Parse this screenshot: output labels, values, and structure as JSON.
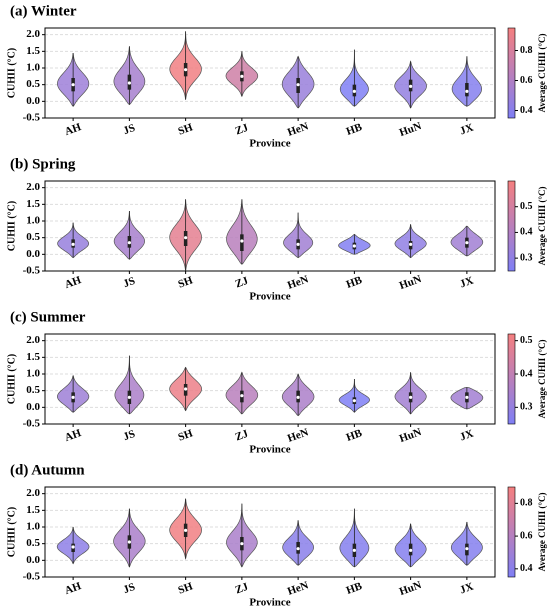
{
  "chart_data": [
    {
      "type": "violin",
      "title": "(a) Winter",
      "x_label": "Province",
      "y_label": "CUHII (°C)",
      "categories": [
        "AH",
        "JS",
        "SH",
        "ZJ",
        "HeN",
        "HB",
        "HuN",
        "JX"
      ],
      "min": [
        -0.15,
        -0.1,
        0.05,
        0.15,
        -0.2,
        -0.15,
        -0.2,
        -0.15
      ],
      "q1": [
        0.3,
        0.35,
        0.75,
        0.6,
        0.25,
        0.15,
        0.3,
        0.15
      ],
      "median": [
        0.5,
        0.55,
        0.95,
        0.75,
        0.5,
        0.3,
        0.45,
        0.3
      ],
      "q3": [
        0.7,
        0.8,
        1.15,
        0.9,
        0.7,
        0.5,
        0.65,
        0.55
      ],
      "max": [
        1.45,
        1.65,
        2.1,
        1.5,
        1.35,
        1.55,
        1.2,
        1.35
      ],
      "mean": [
        0.5,
        0.55,
        0.93,
        0.75,
        0.48,
        0.35,
        0.45,
        0.38
      ],
      "ylim": [
        -0.5,
        2.2
      ],
      "yticks": [
        -0.5,
        {
          "value": 0,
          "label": "0.0"
        },
        0.5,
        {
          "value": 1,
          "label": "1.0"
        },
        1.5,
        {
          "value": 2,
          "label": "2.0"
        }
      ],
      "grid": true,
      "colormap": [
        "#7f7ff5",
        "#f57f7f"
      ],
      "colorbar_label": "Average CUHII (°C)",
      "clim": [
        0.35,
        0.95
      ],
      "cticks": [
        0.4,
        0.6,
        0.8
      ]
    },
    {
      "type": "violin",
      "title": "(b) Spring",
      "x_label": "Province",
      "y_label": "CUHII (°C)",
      "categories": [
        "AH",
        "JS",
        "SH",
        "ZJ",
        "HeN",
        "HB",
        "HuN",
        "JX"
      ],
      "min": [
        -0.1,
        -0.15,
        -0.5,
        -0.3,
        -0.1,
        0.0,
        -0.1,
        -0.05
      ],
      "q1": [
        0.2,
        0.2,
        0.25,
        0.1,
        0.15,
        0.15,
        0.15,
        0.2
      ],
      "median": [
        0.3,
        0.35,
        0.5,
        0.4,
        0.3,
        0.25,
        0.3,
        0.35
      ],
      "q3": [
        0.45,
        0.55,
        0.7,
        0.6,
        0.45,
        0.35,
        0.4,
        0.5
      ],
      "max": [
        0.95,
        1.3,
        1.65,
        1.65,
        1.25,
        0.6,
        0.9,
        0.85
      ],
      "mean": [
        0.32,
        0.37,
        0.55,
        0.42,
        0.35,
        0.26,
        0.3,
        0.35
      ],
      "ylim": [
        -0.5,
        2.2
      ],
      "yticks": [
        -0.5,
        {
          "value": 0,
          "label": "0.0"
        },
        0.5,
        {
          "value": 1,
          "label": "1.0"
        },
        1.5,
        {
          "value": 2,
          "label": "2.0"
        }
      ],
      "grid": true,
      "colormap": [
        "#7f7ff5",
        "#f57f7f"
      ],
      "colorbar_label": "Average CUHII (°C)",
      "clim": [
        0.25,
        0.6
      ],
      "cticks": [
        0.3,
        0.4,
        0.5
      ]
    },
    {
      "type": "violin",
      "title": "(c) Summer",
      "x_label": "Province",
      "y_label": "CUHII (°C)",
      "categories": [
        "AH",
        "JS",
        "SH",
        "ZJ",
        "HeN",
        "HB",
        "HuN",
        "JX"
      ],
      "min": [
        -0.15,
        -0.2,
        -0.1,
        -0.2,
        -0.25,
        -0.15,
        -0.2,
        -0.05
      ],
      "q1": [
        0.15,
        0.1,
        0.35,
        0.15,
        0.15,
        0.1,
        0.15,
        0.15
      ],
      "median": [
        0.3,
        0.3,
        0.55,
        0.35,
        0.3,
        0.2,
        0.3,
        0.3
      ],
      "q3": [
        0.45,
        0.5,
        0.7,
        0.5,
        0.5,
        0.3,
        0.45,
        0.45
      ],
      "max": [
        0.95,
        1.55,
        1.2,
        1.05,
        1.0,
        0.85,
        1.05,
        0.6
      ],
      "mean": [
        0.32,
        0.35,
        0.5,
        0.38,
        0.35,
        0.25,
        0.33,
        0.33
      ],
      "ylim": [
        -0.5,
        2.2
      ],
      "yticks": [
        -0.5,
        {
          "value": 0,
          "label": "0.0"
        },
        0.5,
        {
          "value": 1,
          "label": "1.0"
        },
        1.5,
        {
          "value": 2,
          "label": "2.0"
        }
      ],
      "grid": true,
      "colormap": [
        "#7f7ff5",
        "#f57f7f"
      ],
      "colorbar_label": "Average CUHII (°C)",
      "clim": [
        0.25,
        0.52
      ],
      "cticks": [
        0.3,
        0.4,
        0.5
      ]
    },
    {
      "type": "violin",
      "title": "(d) Autumn",
      "x_label": "Province",
      "y_label": "CUHII (°C)",
      "categories": [
        "AH",
        "JS",
        "SH",
        "ZJ",
        "HeN",
        "HB",
        "HuN",
        "JX"
      ],
      "min": [
        -0.1,
        -0.2,
        0.05,
        -0.2,
        -0.15,
        -0.2,
        -0.2,
        -0.15
      ],
      "q1": [
        0.25,
        0.35,
        0.7,
        0.3,
        0.2,
        0.1,
        0.15,
        0.15
      ],
      "median": [
        0.4,
        0.55,
        0.9,
        0.5,
        0.35,
        0.3,
        0.3,
        0.35
      ],
      "q3": [
        0.5,
        0.75,
        1.1,
        0.7,
        0.55,
        0.5,
        0.5,
        0.5
      ],
      "max": [
        1.0,
        1.55,
        1.85,
        1.7,
        1.2,
        1.55,
        1.1,
        1.15
      ],
      "mean": [
        0.42,
        0.55,
        0.88,
        0.55,
        0.4,
        0.38,
        0.38,
        0.38
      ],
      "ylim": [
        -0.5,
        2.2
      ],
      "yticks": [
        -0.5,
        {
          "value": 0,
          "label": "0.0"
        },
        0.5,
        {
          "value": 1,
          "label": "1.0"
        },
        1.5,
        {
          "value": 2,
          "label": "2.0"
        }
      ],
      "grid": true,
      "colormap": [
        "#7f7ff5",
        "#f57f7f"
      ],
      "colorbar_label": "Average CUHII (°C)",
      "clim": [
        0.35,
        0.9
      ],
      "cticks": [
        0.4,
        0.6,
        0.8
      ]
    }
  ]
}
